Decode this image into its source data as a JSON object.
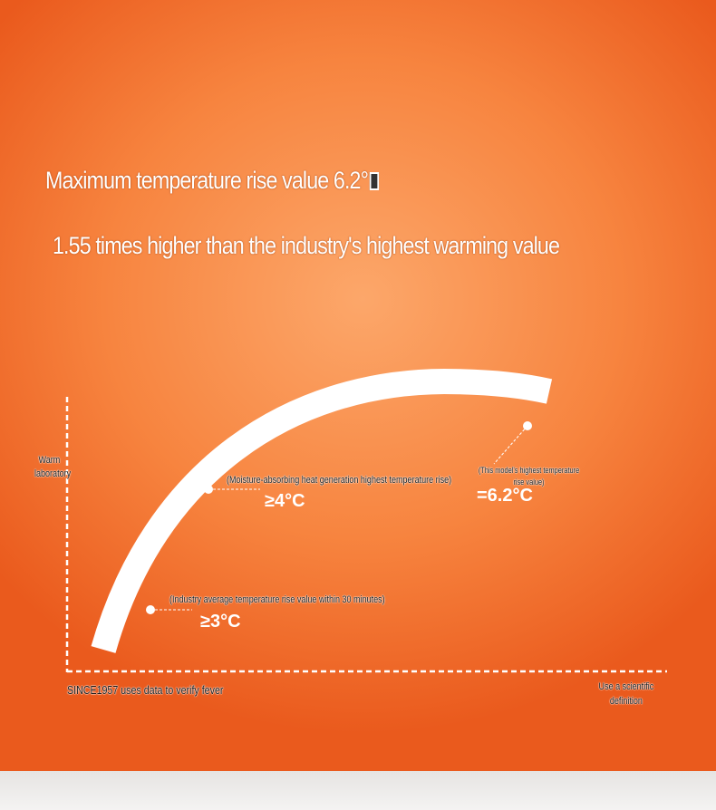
{
  "headline": {
    "title": "Maximum temperature rise value 6.2°",
    "subtitle": "1.55 times higher than the industry's highest warming value"
  },
  "diagram": {
    "y_axis_label": "Warm laboratory",
    "x_axis_label_left": "SINCE1957 uses data to verify fever",
    "x_axis_label_right": "Use a scientific definition",
    "points": [
      {
        "caption": "(Industry average temperature rise value within 30 minutes)",
        "value": "≥3°C"
      },
      {
        "caption": "(Moisture-absorbing heat generation highest temperature rise)",
        "value": "≥4°C"
      },
      {
        "caption": "(This model's highest temperature rise value)",
        "value": "=6.2°C"
      }
    ]
  },
  "colors": {
    "background": "#f7843f",
    "curve": "#ffffff"
  }
}
